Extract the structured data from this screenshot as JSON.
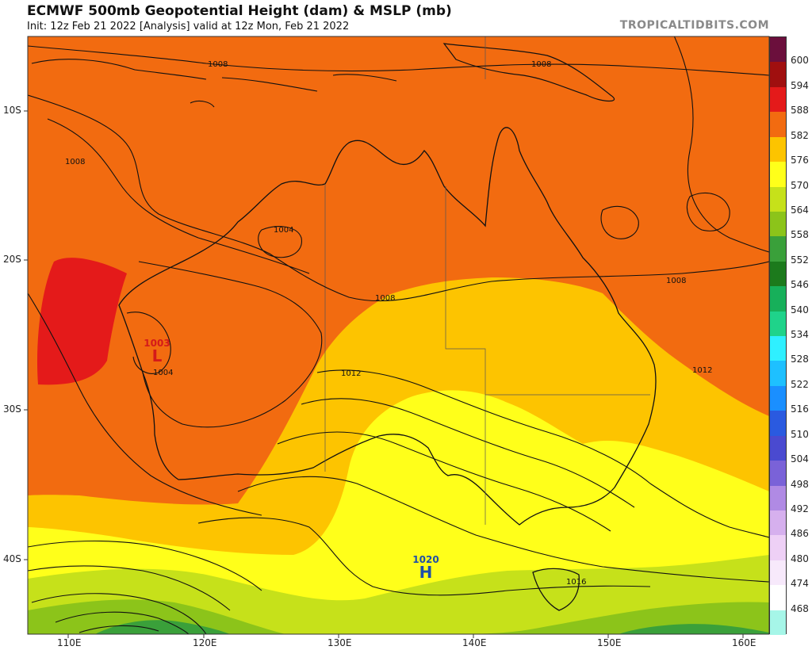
{
  "header": {
    "title": "ECMWF 500mb Geopotential Height (dam) & MSLP (mb)",
    "subtitle": "Init: 12z Feb 21 2022   [Analysis]   valid at 12z Mon, Feb 21 2022",
    "site": "TROPICALTIDBITS.COM"
  },
  "axes": {
    "lat_labels": [
      "10S",
      "20S",
      "30S",
      "40S"
    ],
    "lon_labels": [
      "110E",
      "120E",
      "130E",
      "140E",
      "150E",
      "160E"
    ]
  },
  "pressure_centers": [
    {
      "type": "L",
      "value": "1003",
      "color": "#d41a1a"
    },
    {
      "type": "H",
      "value": "1020",
      "color": "#1f4fa8"
    }
  ],
  "isobar_labels": [
    "1008",
    "1008",
    "1008",
    "1004",
    "1004",
    "1008",
    "1008",
    "1012",
    "1012",
    "1016"
  ],
  "colorbar": {
    "levels": [
      "600",
      "594",
      "588",
      "582",
      "576",
      "570",
      "564",
      "558",
      "552",
      "546",
      "540",
      "534",
      "528",
      "522",
      "516",
      "510",
      "504",
      "498",
      "492",
      "486",
      "480",
      "474",
      "468"
    ],
    "colors": [
      "#6b0f3c",
      "#a00f0f",
      "#e41a1a",
      "#f26b10",
      "#fdc400",
      "#ffff1a",
      "#c6e11a",
      "#8cc41a",
      "#3aa03a",
      "#1c7a1c",
      "#17b05a",
      "#1fd38a",
      "#2ff0ff",
      "#1ec0ff",
      "#1a8fff",
      "#2a5ae0",
      "#4a4ad0",
      "#7a62d8",
      "#b08ae4",
      "#d6b0ee",
      "#eed0f6",
      "#f7e9fb",
      "#ffffff",
      "#a6f6e8"
    ]
  }
}
